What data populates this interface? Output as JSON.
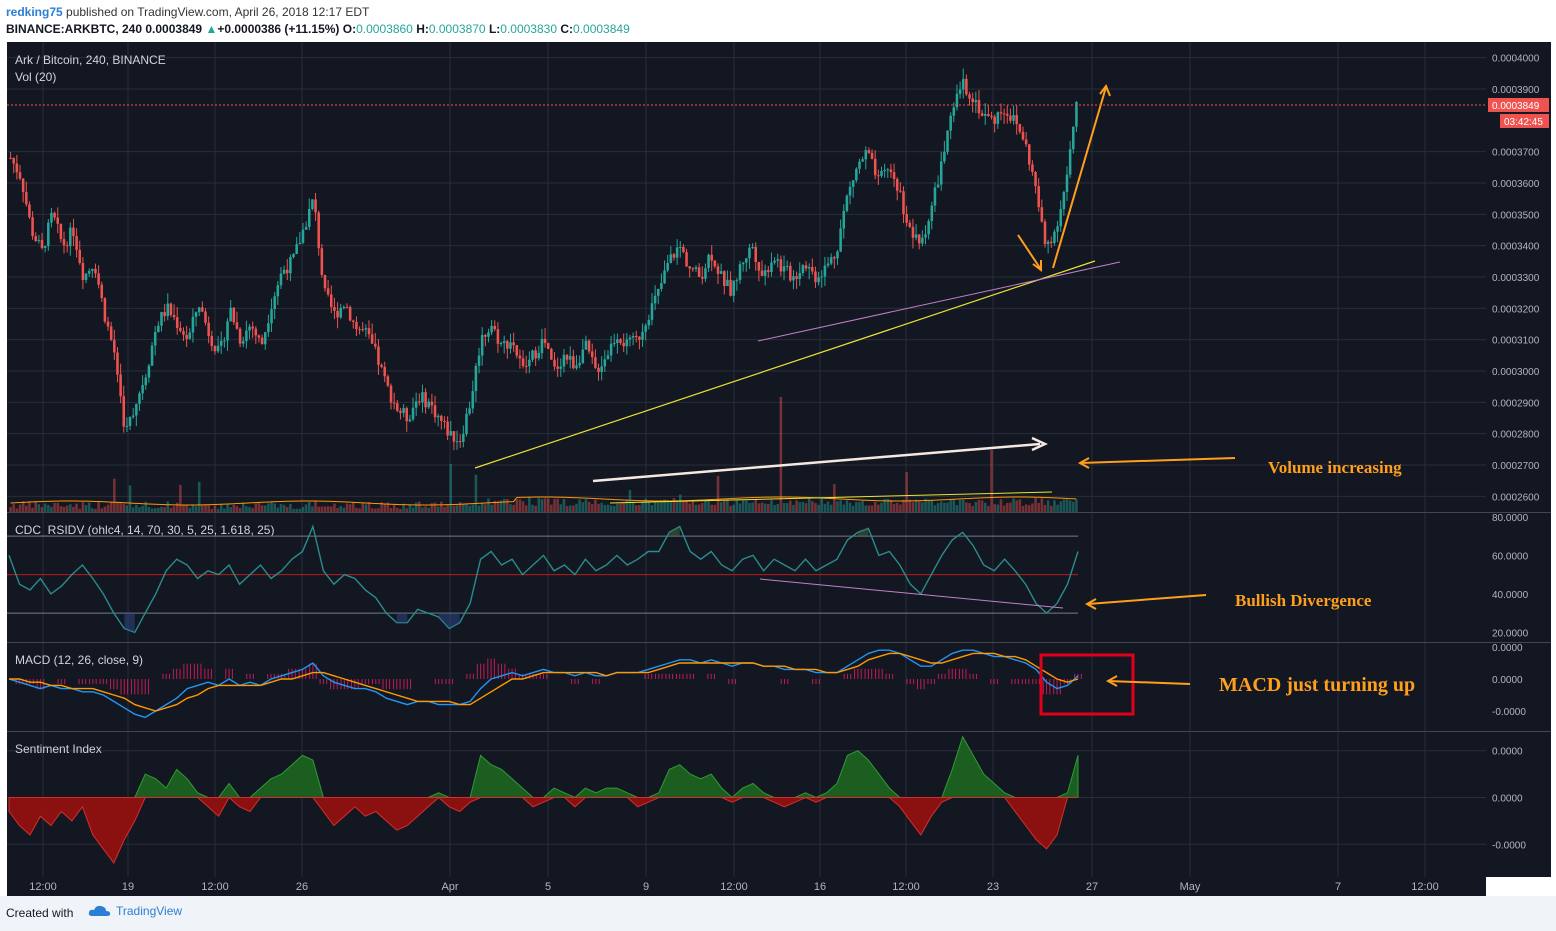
{
  "header": {
    "user": "redking75",
    "published": " published on TradingView.com, April 26, 2018 12:17 EDT",
    "symbol": "BINANCE:ARKBTC, 240",
    "last": "0.0003849",
    "change": "+0.0000386 (+11.15%)",
    "ohlc": {
      "o_label": "O:",
      "o": "0.0003860",
      "h_label": "H:",
      "h": "0.0003870",
      "l_label": "L:",
      "l": "0.0003830",
      "c_label": "C:",
      "c": "0.0003849"
    }
  },
  "colors": {
    "bg": "#131722",
    "grid": "#2a2e39",
    "up": "#26a69a",
    "down": "#ef5350",
    "annotation": "#ff9f1c",
    "price_line": "#ef5350"
  },
  "chart_data": [
    {
      "type": "candlestick",
      "title": "Ark / Bitcoin, 240, BINANCE",
      "volume_label": "Vol (20)",
      "ylim": [
        0.000255,
        0.000405
      ],
      "y_ticks": [
        "0.0004000",
        "0.0003900",
        "0.0003700",
        "0.0003600",
        "0.0003500",
        "0.0003400",
        "0.0003300",
        "0.0003200",
        "0.0003100",
        "0.0003000",
        "0.0002900",
        "0.0002800",
        "0.0002700",
        "0.0002600"
      ],
      "last_price_tag": "0.0003849",
      "countdown_tag": "03:42:45",
      "price_path": [
        0.000368,
        0.000362,
        0.000345,
        0.000338,
        0.00035,
        0.00034,
        0.000345,
        0.00033,
        0.000335,
        0.000318,
        0.000305,
        0.00028,
        0.00029,
        0.0003,
        0.000315,
        0.00032,
        0.000315,
        0.00031,
        0.000322,
        0.000312,
        0.000305,
        0.00032,
        0.00031,
        0.000315,
        0.000308,
        0.000322,
        0.000332,
        0.000335,
        0.000345,
        0.000355,
        0.000325,
        0.000318,
        0.000322,
        0.000314,
        0.000312,
        0.000305,
        0.000295,
        0.000288,
        0.000285,
        0.000292,
        0.00029,
        0.000285,
        0.00028,
        0.000278,
        0.00029,
        0.00031,
        0.000315,
        0.000308,
        0.00031,
        0.0003,
        0.000305,
        0.00031,
        0.0003,
        0.000305,
        0.000302,
        0.000308,
        0.0003,
        0.000305,
        0.000312,
        0.000308,
        0.00031,
        0.000318,
        0.000325,
        0.000335,
        0.00034,
        0.000333,
        0.00033,
        0.000338,
        0.00033,
        0.000325,
        0.000335,
        0.00034,
        0.00033,
        0.000337,
        0.000332,
        0.00033,
        0.000335,
        0.00033,
        0.000333,
        0.000338,
        0.000355,
        0.000365,
        0.00037,
        0.00036,
        0.000365,
        0.000358,
        0.000345,
        0.00034,
        0.00035,
        0.000365,
        0.00038,
        0.000392,
        0.000388,
        0.000382,
        0.00038,
        0.000384,
        0.00038,
        0.000374,
        0.00036,
        0.00034,
        0.000345,
        0.00036,
        0.000384
      ]
    },
    {
      "type": "line",
      "title": "CDC_RSIDV (ohlc4, 14, 70, 30, 5, 25, 1.618, 25)",
      "ylim": [
        15,
        82
      ],
      "y_ticks": [
        "80.0000",
        "60.0000",
        "40.0000",
        "20.0000"
      ],
      "levels": [
        70,
        50,
        30
      ],
      "values": [
        60,
        45,
        42,
        48,
        40,
        44,
        50,
        55,
        48,
        40,
        30,
        22,
        20,
        30,
        40,
        52,
        58,
        55,
        48,
        52,
        50,
        55,
        45,
        50,
        55,
        48,
        52,
        58,
        62,
        75,
        52,
        45,
        50,
        48,
        42,
        38,
        30,
        25,
        25,
        32,
        30,
        28,
        22,
        25,
        35,
        58,
        62,
        55,
        58,
        50,
        55,
        60,
        52,
        55,
        50,
        58,
        52,
        55,
        60,
        55,
        58,
        62,
        62,
        72,
        75,
        62,
        58,
        62,
        55,
        52,
        58,
        60,
        52,
        58,
        55,
        52,
        58,
        52,
        55,
        58,
        68,
        72,
        74,
        60,
        62,
        55,
        45,
        40,
        50,
        60,
        68,
        72,
        65,
        55,
        52,
        58,
        52,
        45,
        35,
        30,
        35,
        45,
        62
      ]
    },
    {
      "type": "line",
      "title": "MACD (12, 26, close, 9)",
      "ylim": [
        -1.5,
        1.0
      ],
      "y_ticks": [
        "0.0000",
        "0.0000",
        "-0.0000"
      ],
      "macd": [
        0.0,
        -0.1,
        -0.2,
        -0.3,
        -0.2,
        -0.3,
        -0.3,
        -0.4,
        -0.4,
        -0.5,
        -0.7,
        -0.9,
        -1.1,
        -1.2,
        -1.0,
        -0.8,
        -0.6,
        -0.3,
        -0.2,
        -0.1,
        -0.2,
        0.0,
        -0.2,
        -0.1,
        -0.2,
        0.0,
        0.1,
        0.2,
        0.3,
        0.5,
        0.1,
        -0.1,
        -0.2,
        -0.3,
        -0.3,
        -0.4,
        -0.6,
        -0.7,
        -0.8,
        -0.7,
        -0.7,
        -0.8,
        -0.8,
        -0.8,
        -0.7,
        -0.3,
        0.0,
        0.1,
        0.2,
        0.1,
        0.2,
        0.3,
        0.2,
        0.2,
        0.1,
        0.2,
        0.1,
        0.1,
        0.2,
        0.2,
        0.2,
        0.3,
        0.4,
        0.5,
        0.6,
        0.6,
        0.5,
        0.6,
        0.5,
        0.4,
        0.5,
        0.5,
        0.4,
        0.4,
        0.3,
        0.3,
        0.3,
        0.2,
        0.2,
        0.2,
        0.4,
        0.6,
        0.8,
        0.9,
        0.9,
        0.8,
        0.6,
        0.4,
        0.4,
        0.6,
        0.8,
        0.9,
        0.9,
        0.8,
        0.7,
        0.7,
        0.6,
        0.5,
        0.3,
        -0.1,
        -0.3,
        -0.2,
        0.1
      ],
      "signal": [
        0.0,
        0.0,
        -0.1,
        -0.1,
        -0.2,
        -0.2,
        -0.3,
        -0.3,
        -0.3,
        -0.4,
        -0.5,
        -0.6,
        -0.8,
        -0.9,
        -1.0,
        -0.9,
        -0.8,
        -0.6,
        -0.5,
        -0.3,
        -0.2,
        -0.2,
        -0.2,
        -0.2,
        -0.2,
        -0.1,
        0.0,
        0.0,
        0.1,
        0.2,
        0.2,
        0.1,
        0.0,
        -0.1,
        -0.2,
        -0.3,
        -0.4,
        -0.5,
        -0.6,
        -0.7,
        -0.7,
        -0.7,
        -0.7,
        -0.8,
        -0.8,
        -0.6,
        -0.4,
        -0.2,
        0.0,
        0.0,
        0.1,
        0.2,
        0.2,
        0.2,
        0.2,
        0.2,
        0.2,
        0.1,
        0.2,
        0.2,
        0.2,
        0.2,
        0.3,
        0.4,
        0.5,
        0.5,
        0.5,
        0.5,
        0.5,
        0.5,
        0.5,
        0.5,
        0.4,
        0.4,
        0.4,
        0.3,
        0.3,
        0.3,
        0.2,
        0.2,
        0.3,
        0.4,
        0.6,
        0.7,
        0.8,
        0.8,
        0.7,
        0.6,
        0.5,
        0.5,
        0.6,
        0.7,
        0.8,
        0.8,
        0.8,
        0.7,
        0.7,
        0.6,
        0.4,
        0.2,
        0.0,
        -0.1,
        0.0
      ]
    },
    {
      "type": "area",
      "title": "Sentiment Index",
      "ylim": [
        -1.7,
        1.4
      ],
      "y_ticks": [
        "0.0000",
        "0.0000",
        "-0.0000"
      ],
      "values": [
        -0.3,
        -0.6,
        -0.8,
        -0.4,
        -0.6,
        -0.3,
        -0.5,
        -0.2,
        -0.8,
        -1.1,
        -1.4,
        -0.9,
        -0.5,
        0.5,
        0.4,
        0.2,
        0.6,
        0.4,
        0.1,
        -0.2,
        -0.4,
        0.3,
        -0.2,
        -0.3,
        0.2,
        0.4,
        0.5,
        0.7,
        0.9,
        0.8,
        -0.3,
        -0.6,
        -0.4,
        -0.2,
        -0.4,
        -0.3,
        -0.5,
        -0.7,
        -0.6,
        -0.4,
        -0.2,
        0.1,
        -0.2,
        -0.3,
        -0.1,
        0.9,
        0.7,
        0.6,
        0.4,
        0.2,
        -0.2,
        -0.1,
        0.2,
        0.1,
        -0.2,
        0.2,
        0.1,
        0.2,
        0.2,
        0.1,
        -0.2,
        -0.1,
        0.1,
        0.6,
        0.7,
        0.5,
        0.4,
        0.5,
        0.2,
        -0.1,
        0.2,
        0.3,
        0.1,
        -0.1,
        -0.2,
        -0.1,
        0.1,
        -0.1,
        0.1,
        0.3,
        0.9,
        1.0,
        0.8,
        0.5,
        0.2,
        -0.2,
        -0.5,
        -0.8,
        -0.4,
        -0.1,
        0.6,
        1.3,
        0.9,
        0.5,
        0.3,
        0.1,
        -0.3,
        -0.6,
        -0.9,
        -1.1,
        -0.8,
        0.1,
        0.9
      ]
    }
  ],
  "x_axis": {
    "ticks": [
      {
        "label": "12:00",
        "x": 43
      },
      {
        "label": "19",
        "x": 128
      },
      {
        "label": "12:00",
        "x": 215
      },
      {
        "label": "26",
        "x": 302
      },
      {
        "label": "Apr",
        "x": 450
      },
      {
        "label": "5",
        "x": 548
      },
      {
        "label": "9",
        "x": 646
      },
      {
        "label": "12:00",
        "x": 734
      },
      {
        "label": "16",
        "x": 820
      },
      {
        "label": "12:00",
        "x": 906
      },
      {
        "label": "23",
        "x": 993
      },
      {
        "label": "27",
        "x": 1092
      },
      {
        "label": "May",
        "x": 1190
      },
      {
        "label": "7",
        "x": 1338
      },
      {
        "label": "12:00",
        "x": 1425
      }
    ]
  },
  "annotations": {
    "volume": "Volume increasing",
    "divergence": "Bullish Divergence",
    "macd": "MACD just turning up"
  },
  "footer": {
    "created": "Created with",
    "brand": "TradingView"
  }
}
